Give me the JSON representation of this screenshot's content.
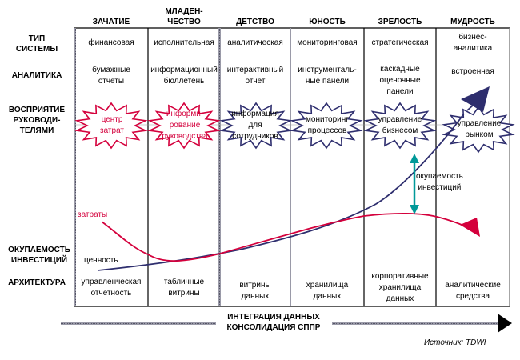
{
  "stages": [
    {
      "label": "ЗАЧАТИЕ"
    },
    {
      "label": "МЛАДЕН-\nЧЕСТВО"
    },
    {
      "label": "ДЕТСТВО"
    },
    {
      "label": "ЮНОСТЬ"
    },
    {
      "label": "ЗРЕЛОСТЬ"
    },
    {
      "label": "МУДРОСТЬ"
    }
  ],
  "row_labels": {
    "system_type": "ТИП\nСИСТЕМЫ",
    "analytics": "АНАЛИТИКА",
    "perception": "ВОСПРИЯТИЕ\nРУКОВОДИ-\nТЕЛЯМИ",
    "roi": "ОКУПАЕМОСТЬ\nИНВЕСТИЦИЙ",
    "architecture": "АРХИТЕКТУРА"
  },
  "system_type": [
    "финансовая",
    "исполнительная",
    "аналитическая",
    "мониторинговая",
    "стратегическая",
    "бизнес-\nаналитика"
  ],
  "analytics": [
    "бумажные\nотчеты",
    "информационный\nбюллетень",
    "интерактивный\nотчет",
    "инструменталь-\nные панели",
    "каскадные\nоценочные\nпанели",
    "встроенная"
  ],
  "perception": [
    "центр\nзатрат",
    "информи-\nрование\nруководства",
    "информация\nдля\nсотрудников",
    "мониторинг\nпроцессов",
    "управление\nбизнесом",
    "управление\nрынком"
  ],
  "architecture": [
    "управленческая\nотчетность",
    "табличные\nвитрины",
    "витрины\nданных",
    "хранилища\nданных",
    "корпоративные\nхранилища\nданных",
    "аналитические\nсредства"
  ],
  "curves": {
    "cost_label": "затраты",
    "value_label": "ценность",
    "roi_label": "окупаемость\nинвестиций"
  },
  "bottom": {
    "title": "ИНТЕГРАЦИЯ ДАННЫХ\nКОНСОЛИДАЦИЯ СППР",
    "source": "Источник: TDWI"
  },
  "colors": {
    "cost": "#d4003c",
    "value": "#2e2e6e",
    "roi_arrow": "#009999",
    "grid": "#000000",
    "grid_thick": "#6e6e80"
  }
}
